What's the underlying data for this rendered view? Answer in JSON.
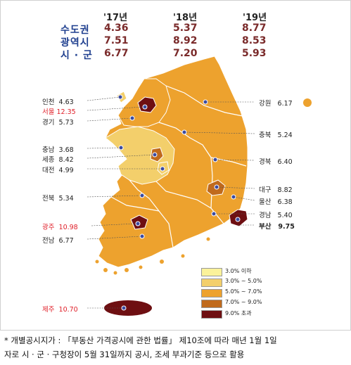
{
  "summary": {
    "years": [
      "'17년",
      "'18년",
      "'19년"
    ],
    "rows": [
      {
        "label": "수도권",
        "values": [
          "4.36",
          "5.37",
          "8.77"
        ]
      },
      {
        "label": "광역시",
        "values": [
          "7.51",
          "8.92",
          "8.53"
        ]
      },
      {
        "label": "시 · 군",
        "values": [
          "6.77",
          "7.20",
          "5.93"
        ]
      }
    ]
  },
  "regions": [
    {
      "name": "인천",
      "value": "4.63"
    },
    {
      "name": "서울",
      "value": "12.35"
    },
    {
      "name": "경기",
      "value": "5.73"
    },
    {
      "name": "강원",
      "value": "6.17"
    },
    {
      "name": "충북",
      "value": "5.24"
    },
    {
      "name": "충남",
      "value": "3.68"
    },
    {
      "name": "세종",
      "value": "8.42"
    },
    {
      "name": "대전",
      "value": "4.99"
    },
    {
      "name": "경북",
      "value": "6.40"
    },
    {
      "name": "전북",
      "value": "5.34"
    },
    {
      "name": "대구",
      "value": "8.82"
    },
    {
      "name": "울산",
      "value": "6.38"
    },
    {
      "name": "경남",
      "value": "5.40"
    },
    {
      "name": "부산",
      "value": "9.75"
    },
    {
      "name": "광주",
      "value": "10.98"
    },
    {
      "name": "전남",
      "value": "6.77"
    },
    {
      "name": "제주",
      "value": "10.70"
    }
  ],
  "legend": [
    {
      "label": "3.0% 이하",
      "color": "#fbf29a"
    },
    {
      "label": "3.0% ~ 5.0%",
      "color": "#f3cf6b"
    },
    {
      "label": "5.0% ~ 7.0%",
      "color": "#eda22e"
    },
    {
      "label": "7.0% ~ 9.0%",
      "color": "#c06a1c"
    },
    {
      "label": "9.0% 초과",
      "color": "#6e0f12"
    }
  ],
  "colors": {
    "label_red": "#e0202a",
    "summary_blue": "#1f3f8f",
    "summary_value": "#7a2a2a",
    "marker": "#3a4aa0"
  },
  "note": {
    "line1": "* 개별공시지가 : 「부동산 가격공시에 관한 법률」 제10조에 따라 매년 1월 1일",
    "line2": "자로 시 · 군 · 구청장이 5월 31일까지 공시, 조세 부과기준 등으로 활용"
  }
}
